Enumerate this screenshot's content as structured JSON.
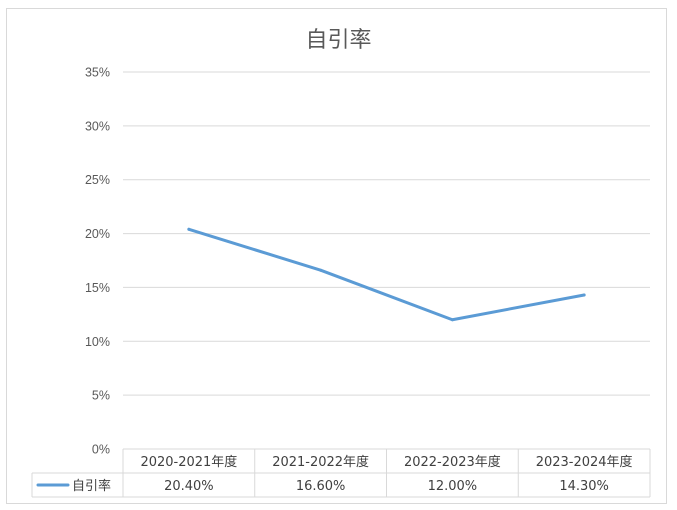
{
  "chart_data": {
    "type": "line",
    "title": "自引率",
    "categories": [
      "2020-2021年度",
      "2021-2022年度",
      "2022-2023年度",
      "2023-2024年度"
    ],
    "series": [
      {
        "name": "自引率",
        "values": [
          0.204,
          0.166,
          0.12,
          0.143
        ],
        "labels": [
          "20.40%",
          "16.60%",
          "12.00%",
          "14.30%"
        ]
      }
    ],
    "ylim": [
      0,
      0.35
    ],
    "yticks": [
      "0%",
      "5%",
      "10%",
      "15%",
      "20%",
      "25%",
      "30%",
      "35%"
    ],
    "grid": true,
    "legend": "data-table",
    "colors": {
      "series": "#5b9bd5",
      "grid": "#d9d9d9",
      "text": "#595959"
    }
  }
}
